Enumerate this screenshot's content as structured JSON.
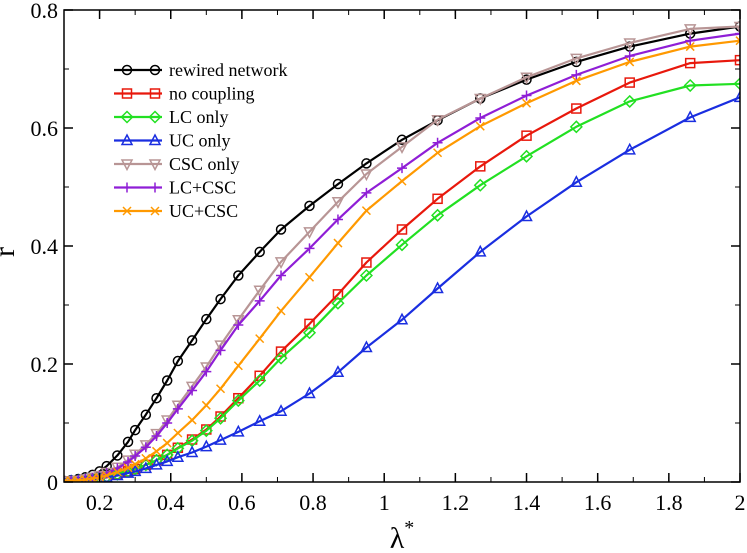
{
  "chart_data": {
    "type": "line",
    "title": "",
    "xlabel": "λ",
    "xlabel_superscript": "*",
    "ylabel": "r",
    "xlim": [
      0.1,
      2.0
    ],
    "ylim": [
      0,
      0.8
    ],
    "xticks": [
      0.2,
      0.4,
      0.6,
      0.8,
      1.0,
      1.2,
      1.4,
      1.6,
      1.8,
      2.0
    ],
    "xtick_labels": [
      "0.2",
      "0.4",
      "0.6",
      "0.8",
      "1",
      "1.2",
      "1.4",
      "1.6",
      "1.8",
      "2"
    ],
    "yticks": [
      0,
      0.2,
      0.4,
      0.6,
      0.8
    ],
    "ytick_labels": [
      "0",
      "0.2",
      "0.4",
      "0.6",
      "0.8"
    ],
    "legend_position": "upper-left",
    "x": [
      0.1,
      0.12,
      0.14,
      0.16,
      0.18,
      0.2,
      0.22,
      0.25,
      0.28,
      0.3,
      0.33,
      0.36,
      0.39,
      0.42,
      0.46,
      0.5,
      0.54,
      0.59,
      0.65,
      0.71,
      0.79,
      0.87,
      0.95,
      1.05,
      1.15,
      1.27,
      1.4,
      1.54,
      1.69,
      1.86,
      2.0
    ],
    "series": [
      {
        "name": "rewired network",
        "color": "#000000",
        "marker": "circle",
        "values": [
          0.002,
          0.003,
          0.005,
          0.008,
          0.012,
          0.018,
          0.027,
          0.045,
          0.068,
          0.088,
          0.114,
          0.142,
          0.172,
          0.205,
          0.24,
          0.276,
          0.31,
          0.35,
          0.39,
          0.428,
          0.468,
          0.505,
          0.54,
          0.58,
          0.613,
          0.65,
          0.682,
          0.712,
          0.738,
          0.76,
          0.772
        ]
      },
      {
        "name": "no coupling",
        "color": "#e8180c",
        "marker": "square",
        "values": [
          0.0,
          0.001,
          0.002,
          0.003,
          0.005,
          0.007,
          0.009,
          0.013,
          0.018,
          0.022,
          0.029,
          0.037,
          0.046,
          0.058,
          0.072,
          0.089,
          0.111,
          0.142,
          0.18,
          0.221,
          0.268,
          0.318,
          0.372,
          0.428,
          0.48,
          0.535,
          0.587,
          0.633,
          0.677,
          0.71,
          0.715
        ]
      },
      {
        "name": "LC only",
        "color": "#22e022",
        "marker": "diamond",
        "values": [
          0.0,
          0.001,
          0.002,
          0.003,
          0.005,
          0.007,
          0.009,
          0.013,
          0.018,
          0.022,
          0.029,
          0.037,
          0.046,
          0.057,
          0.07,
          0.087,
          0.108,
          0.138,
          0.172,
          0.21,
          0.253,
          0.303,
          0.35,
          0.402,
          0.452,
          0.503,
          0.552,
          0.602,
          0.645,
          0.672,
          0.675
        ]
      },
      {
        "name": "UC only",
        "color": "#1a2ee0",
        "marker": "triangle-up",
        "values": [
          0.0,
          0.001,
          0.002,
          0.003,
          0.004,
          0.006,
          0.008,
          0.011,
          0.015,
          0.018,
          0.023,
          0.029,
          0.035,
          0.042,
          0.05,
          0.06,
          0.071,
          0.085,
          0.103,
          0.12,
          0.15,
          0.186,
          0.228,
          0.275,
          0.328,
          0.39,
          0.45,
          0.508,
          0.563,
          0.618,
          0.652
        ]
      },
      {
        "name": "CSC only",
        "color": "#b89595",
        "marker": "triangle-down",
        "values": [
          0.001,
          0.002,
          0.003,
          0.005,
          0.008,
          0.011,
          0.016,
          0.025,
          0.037,
          0.047,
          0.063,
          0.082,
          0.105,
          0.13,
          0.162,
          0.195,
          0.232,
          0.275,
          0.325,
          0.373,
          0.424,
          0.475,
          0.522,
          0.568,
          0.614,
          0.65,
          0.686,
          0.718,
          0.744,
          0.768,
          0.772
        ]
      },
      {
        "name": "LC+CSC",
        "color": "#8f1ed6",
        "marker": "plus",
        "values": [
          0.001,
          0.002,
          0.003,
          0.005,
          0.007,
          0.01,
          0.015,
          0.023,
          0.034,
          0.044,
          0.059,
          0.078,
          0.1,
          0.124,
          0.155,
          0.187,
          0.223,
          0.266,
          0.307,
          0.35,
          0.396,
          0.445,
          0.49,
          0.532,
          0.575,
          0.617,
          0.655,
          0.69,
          0.722,
          0.748,
          0.76
        ]
      },
      {
        "name": "UC+CSC",
        "color": "#ff9900",
        "marker": "cross",
        "values": [
          0.001,
          0.002,
          0.003,
          0.004,
          0.006,
          0.008,
          0.011,
          0.017,
          0.024,
          0.03,
          0.04,
          0.052,
          0.066,
          0.083,
          0.105,
          0.13,
          0.158,
          0.197,
          0.243,
          0.29,
          0.347,
          0.405,
          0.46,
          0.51,
          0.558,
          0.603,
          0.642,
          0.68,
          0.712,
          0.738,
          0.748
        ]
      }
    ]
  }
}
